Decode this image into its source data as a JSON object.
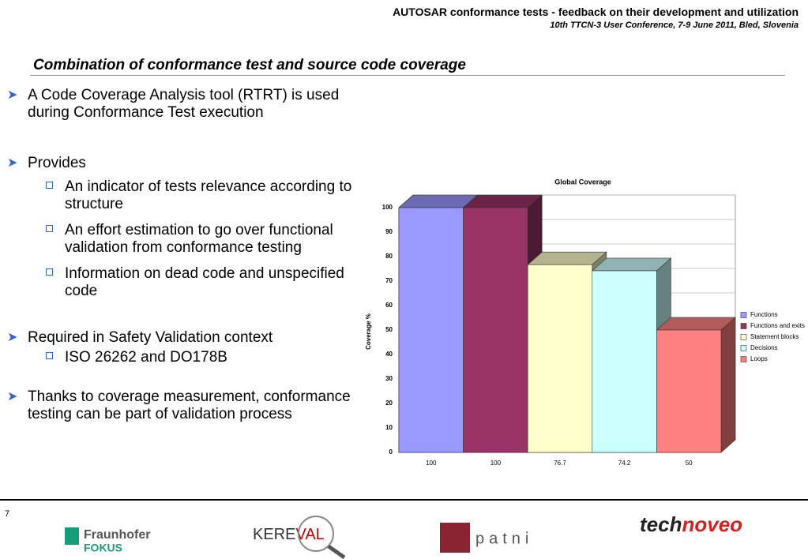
{
  "header": {
    "title": "AUTOSAR conformance tests - feedback on their development and utilization",
    "subtitle": "10th TTCN-3 User Conference, 7-9 June 2011, Bled, Slovenia"
  },
  "heading": "Combination of conformance test and source code coverage",
  "bullets": [
    {
      "text": "A Code Coverage Analysis tool (RTRT) is used during Conformance Test execution",
      "sub": []
    },
    {
      "text": "Provides",
      "sub": [
        "An indicator of tests relevance according to structure",
        "An effort estimation to go over functional validation from conformance testing",
        "Information on dead code and unspecified code"
      ]
    },
    {
      "text": "Required in Safety Validation context",
      "sub": [
        "ISO 26262 and DO178B"
      ]
    },
    {
      "text": "Thanks to coverage measurement, conformance testing can be part of validation process",
      "sub": []
    }
  ],
  "chart_data": {
    "type": "bar3d",
    "title": "Global Coverage",
    "ylabel": "Coverage  %",
    "names": [
      "Functions",
      "Functions and exits",
      "Statement blocks",
      "Decisions",
      "Loops"
    ],
    "colors": [
      "#9999ff",
      "#993366",
      "#ffffcc",
      "#ccffff",
      "#ff8080"
    ],
    "values": [
      100,
      100,
      76.7,
      74.2,
      50
    ],
    "ylim": [
      0,
      100
    ],
    "yticks": [
      0,
      10,
      20,
      30,
      40,
      50,
      60,
      70,
      80,
      90,
      100
    ],
    "grid": true
  },
  "footer": {
    "page": "7",
    "logos": [
      "Fraunhofer",
      "FOKUS",
      "KERE",
      "VAL",
      "patni",
      "tech",
      "noveo"
    ]
  }
}
